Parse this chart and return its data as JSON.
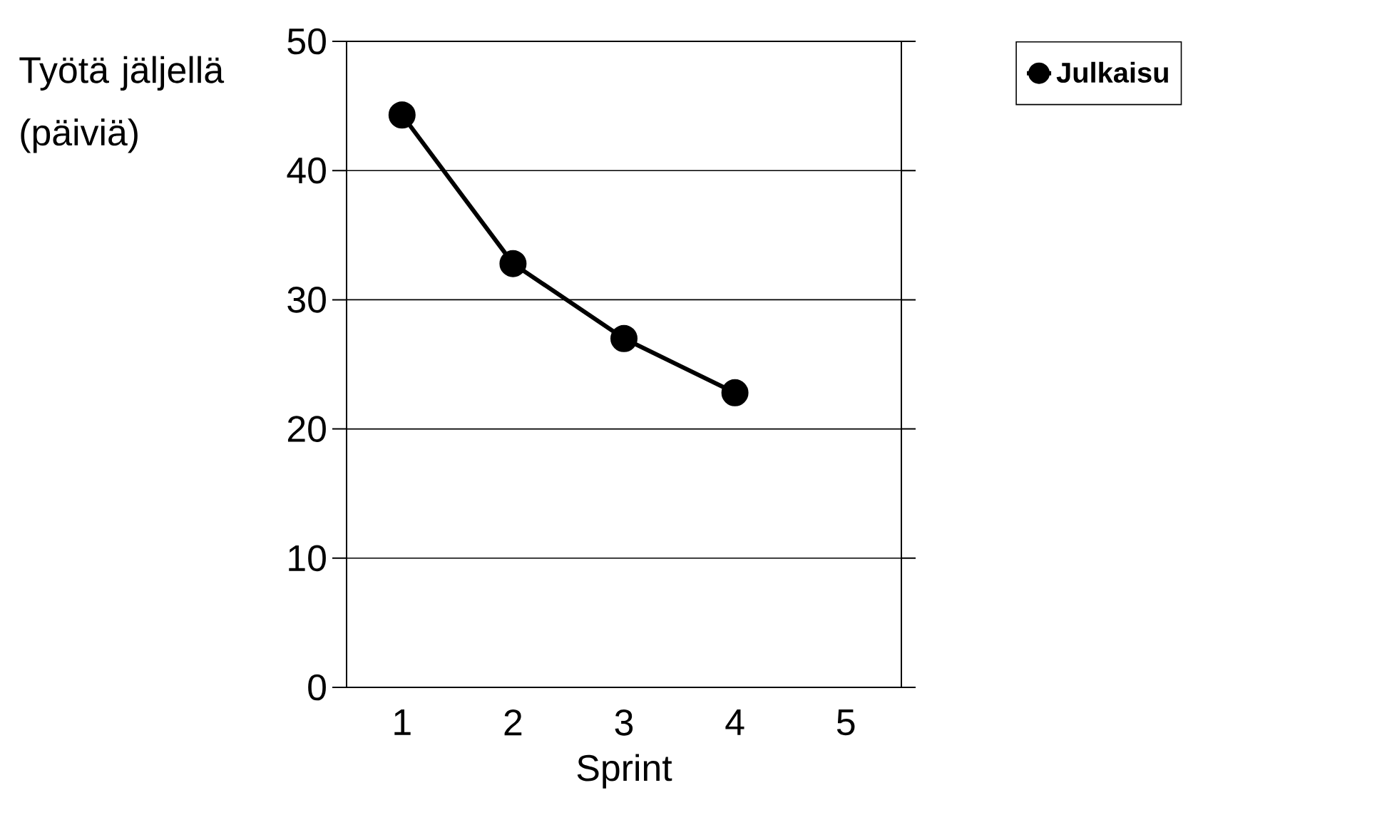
{
  "chart_data": {
    "type": "line",
    "xlabel": "Sprint",
    "ylabel": "Työtä jäljellä (päiviä)",
    "categories": [
      "1",
      "2",
      "3",
      "4",
      "5"
    ],
    "series": [
      {
        "name": "Julkaisu",
        "color": "#000000",
        "values": [
          44.3,
          32.8,
          27.0,
          22.8,
          null
        ]
      }
    ],
    "ylim": [
      0,
      50
    ],
    "yticks": [
      0,
      10,
      20,
      30,
      40,
      50
    ],
    "grid": "y",
    "legend": "top right",
    "marker": "circle",
    "line_style": "solid"
  }
}
